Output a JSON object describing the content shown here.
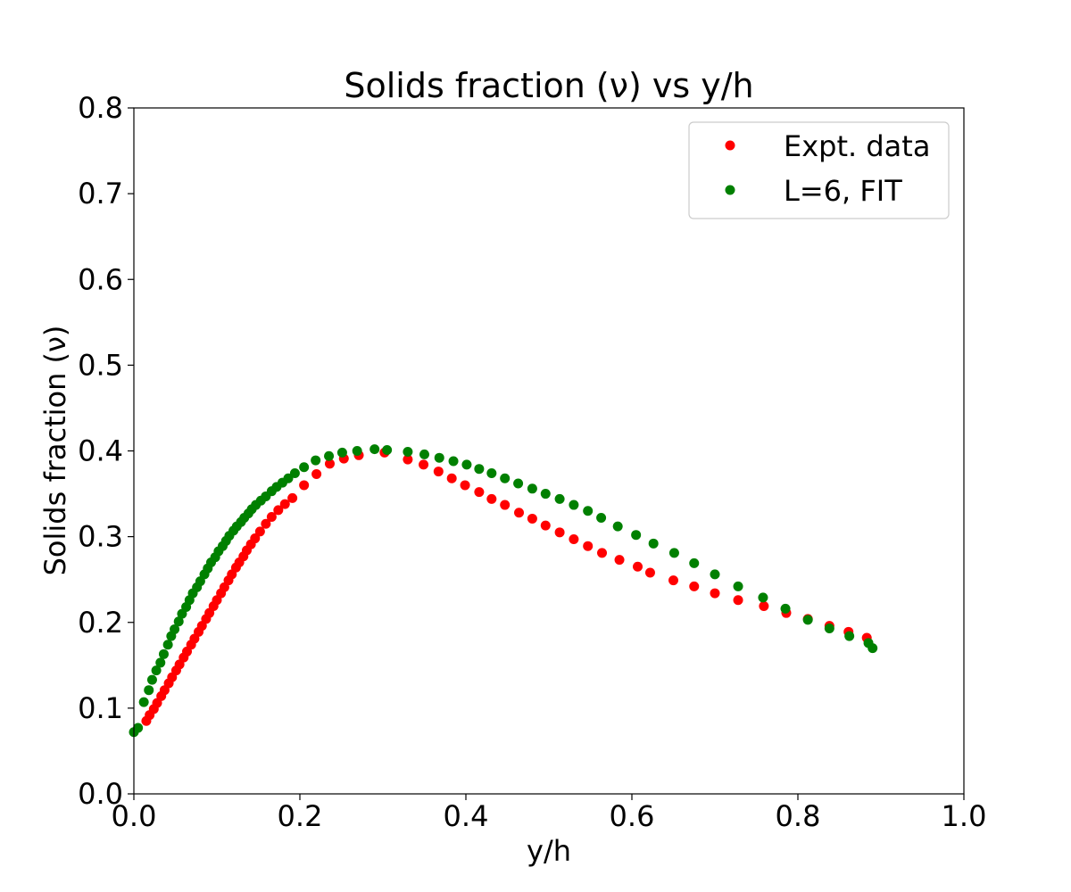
{
  "chart_data": {
    "type": "scatter",
    "title": "Solids fraction (ν) vs y/h",
    "xlabel": "y/h",
    "ylabel": "Solids fraction (ν)",
    "xlim": [
      0.0,
      1.0
    ],
    "ylim": [
      0.0,
      0.8
    ],
    "xticks": [
      0.0,
      0.2,
      0.4,
      0.6,
      0.8,
      1.0
    ],
    "yticks": [
      0.0,
      0.1,
      0.2,
      0.3,
      0.4,
      0.5,
      0.6,
      0.7,
      0.8
    ],
    "xtick_labels": [
      "0.0",
      "0.2",
      "0.4",
      "0.6",
      "0.8",
      "1.0"
    ],
    "ytick_labels": [
      "0.0",
      "0.1",
      "0.2",
      "0.3",
      "0.4",
      "0.5",
      "0.6",
      "0.7",
      "0.8"
    ],
    "grid": false,
    "legend_position": "top-right",
    "series": [
      {
        "name": "Expt. data",
        "color": "#ff0000",
        "x": [
          0.015,
          0.019,
          0.024,
          0.028,
          0.033,
          0.037,
          0.042,
          0.046,
          0.051,
          0.055,
          0.06,
          0.064,
          0.069,
          0.073,
          0.078,
          0.082,
          0.087,
          0.091,
          0.096,
          0.1,
          0.105,
          0.109,
          0.114,
          0.118,
          0.123,
          0.127,
          0.132,
          0.136,
          0.141,
          0.146,
          0.152,
          0.159,
          0.166,
          0.174,
          0.182,
          0.191,
          0.205,
          0.22,
          0.236,
          0.253,
          0.271,
          0.302,
          0.33,
          0.349,
          0.367,
          0.383,
          0.399,
          0.416,
          0.431,
          0.447,
          0.464,
          0.48,
          0.496,
          0.513,
          0.53,
          0.547,
          0.564,
          0.585,
          0.607,
          0.622,
          0.65,
          0.675,
          0.7,
          0.728,
          0.759,
          0.786,
          0.812,
          0.838,
          0.861,
          0.883
        ],
        "y": [
          0.085,
          0.092,
          0.099,
          0.106,
          0.114,
          0.121,
          0.129,
          0.136,
          0.144,
          0.151,
          0.159,
          0.166,
          0.174,
          0.181,
          0.189,
          0.196,
          0.204,
          0.211,
          0.219,
          0.226,
          0.234,
          0.241,
          0.249,
          0.256,
          0.264,
          0.27,
          0.277,
          0.284,
          0.291,
          0.298,
          0.306,
          0.315,
          0.323,
          0.331,
          0.338,
          0.345,
          0.36,
          0.373,
          0.385,
          0.391,
          0.395,
          0.398,
          0.39,
          0.384,
          0.376,
          0.368,
          0.36,
          0.352,
          0.344,
          0.337,
          0.328,
          0.321,
          0.313,
          0.305,
          0.297,
          0.289,
          0.281,
          0.273,
          0.265,
          0.258,
          0.249,
          0.242,
          0.234,
          0.226,
          0.219,
          0.211,
          0.204,
          0.196,
          0.189,
          0.182
        ]
      },
      {
        "name": "L=6, FIT",
        "color": "#008000",
        "x": [
          0.0,
          0.005,
          0.012,
          0.018,
          0.022,
          0.027,
          0.032,
          0.036,
          0.041,
          0.045,
          0.049,
          0.054,
          0.058,
          0.063,
          0.067,
          0.071,
          0.076,
          0.08,
          0.085,
          0.089,
          0.093,
          0.098,
          0.102,
          0.107,
          0.111,
          0.115,
          0.12,
          0.124,
          0.129,
          0.133,
          0.138,
          0.142,
          0.147,
          0.153,
          0.159,
          0.166,
          0.172,
          0.179,
          0.186,
          0.194,
          0.205,
          0.219,
          0.235,
          0.251,
          0.269,
          0.29,
          0.305,
          0.33,
          0.35,
          0.368,
          0.385,
          0.401,
          0.416,
          0.431,
          0.447,
          0.463,
          0.48,
          0.496,
          0.513,
          0.53,
          0.547,
          0.563,
          0.583,
          0.605,
          0.626,
          0.651,
          0.675,
          0.7,
          0.728,
          0.758,
          0.785,
          0.812,
          0.838,
          0.862,
          0.885,
          0.89
        ],
        "y": [
          0.072,
          0.077,
          0.107,
          0.121,
          0.133,
          0.144,
          0.153,
          0.163,
          0.174,
          0.184,
          0.192,
          0.201,
          0.21,
          0.218,
          0.226,
          0.234,
          0.241,
          0.248,
          0.256,
          0.263,
          0.27,
          0.276,
          0.283,
          0.289,
          0.295,
          0.301,
          0.307,
          0.312,
          0.317,
          0.322,
          0.327,
          0.332,
          0.337,
          0.342,
          0.347,
          0.353,
          0.358,
          0.363,
          0.368,
          0.374,
          0.381,
          0.389,
          0.394,
          0.398,
          0.4,
          0.402,
          0.401,
          0.399,
          0.396,
          0.392,
          0.388,
          0.384,
          0.379,
          0.374,
          0.368,
          0.362,
          0.356,
          0.35,
          0.344,
          0.337,
          0.33,
          0.322,
          0.312,
          0.302,
          0.292,
          0.281,
          0.269,
          0.256,
          0.242,
          0.229,
          0.216,
          0.203,
          0.193,
          0.184,
          0.176,
          0.17
        ]
      }
    ]
  }
}
